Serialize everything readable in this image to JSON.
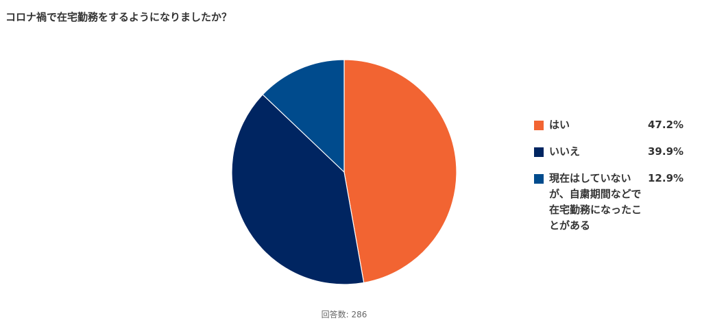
{
  "chart_data": {
    "type": "pie",
    "title": "コロナ禍で在宅勤務をするようになりましたか？",
    "slices": [
      {
        "label": "はい",
        "value": 47.2,
        "display": "47.2%",
        "color": "#f26432"
      },
      {
        "label": "いいえ",
        "value": 39.9,
        "display": "39.9%",
        "color": "#002561"
      },
      {
        "label": "現在はしていないが、自粛期間などで在宅勤務になったことがある",
        "value": 12.9,
        "display": "12.9%",
        "color": "#004b8d"
      }
    ],
    "legend_position": "right",
    "footer": "回答数: 286"
  }
}
